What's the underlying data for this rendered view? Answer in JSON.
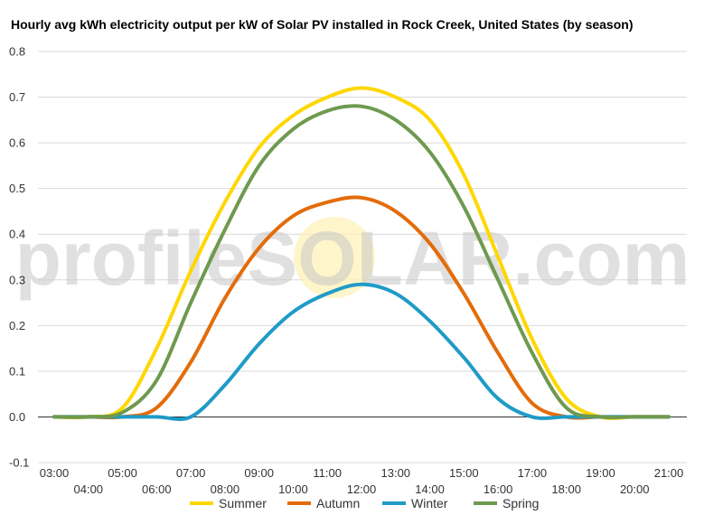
{
  "chart_data": {
    "type": "line",
    "title": "Hourly avg kWh electricity output per kW of Solar PV installed in Rock Creek, United States (by season)",
    "xlabel": "",
    "ylabel": "",
    "ylim": [
      -0.1,
      0.8
    ],
    "xlim": [
      3,
      21
    ],
    "grid": true,
    "legend_position": "bottom",
    "watermark": "profileSOLAR.com",
    "y_ticks": [
      "-0.1",
      "0.0",
      "0.1",
      "0.2",
      "0.3",
      "0.4",
      "0.5",
      "0.6",
      "0.7",
      "0.8"
    ],
    "x_ticks": [
      "03:00",
      "04:00",
      "05:00",
      "06:00",
      "07:00",
      "08:00",
      "09:00",
      "10:00",
      "11:00",
      "12:00",
      "13:00",
      "14:00",
      "15:00",
      "16:00",
      "17:00",
      "18:00",
      "19:00",
      "20:00",
      "21:00"
    ],
    "x": [
      3,
      4,
      5,
      6,
      7,
      8,
      9,
      10,
      11,
      12,
      13,
      14,
      15,
      16,
      17,
      18,
      19,
      20,
      21
    ],
    "series": [
      {
        "name": "Summer",
        "color": "#ffd700",
        "values": [
          0.0,
          0.0,
          0.02,
          0.15,
          0.32,
          0.47,
          0.59,
          0.66,
          0.7,
          0.72,
          0.7,
          0.65,
          0.53,
          0.35,
          0.17,
          0.04,
          0.0,
          0.0,
          0.0
        ]
      },
      {
        "name": "Autumn",
        "color": "#e36c0a",
        "values": [
          0.0,
          0.0,
          0.0,
          0.02,
          0.12,
          0.26,
          0.37,
          0.44,
          0.47,
          0.48,
          0.45,
          0.38,
          0.27,
          0.14,
          0.03,
          0.0,
          0.0,
          0.0,
          0.0
        ]
      },
      {
        "name": "Winter",
        "color": "#1f9bc7",
        "values": [
          0.0,
          0.0,
          0.0,
          0.0,
          0.0,
          0.07,
          0.16,
          0.23,
          0.27,
          0.29,
          0.27,
          0.21,
          0.13,
          0.04,
          0.0,
          0.0,
          0.0,
          0.0,
          0.0
        ]
      },
      {
        "name": "Spring",
        "color": "#6e9a4f",
        "values": [
          0.0,
          0.0,
          0.01,
          0.08,
          0.25,
          0.41,
          0.55,
          0.63,
          0.67,
          0.68,
          0.65,
          0.58,
          0.46,
          0.3,
          0.14,
          0.02,
          0.0,
          0.0,
          0.0
        ]
      }
    ]
  }
}
